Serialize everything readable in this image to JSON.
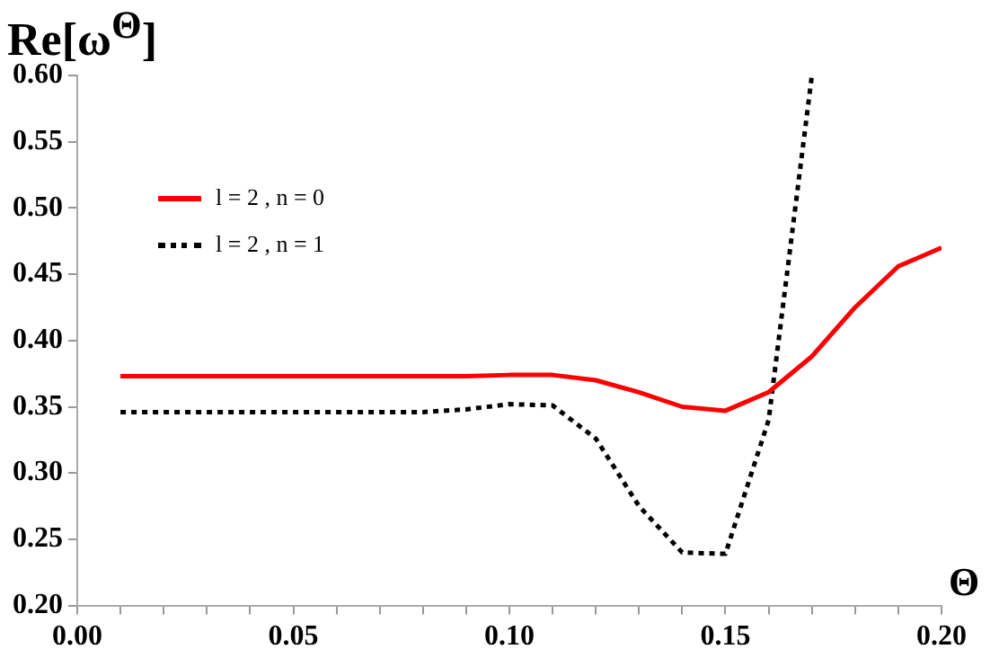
{
  "chart_data": {
    "type": "line",
    "ylabel": "Re[ω$^{Θ}$]",
    "xlabel": "Θ",
    "x": [
      0.01,
      0.02,
      0.03,
      0.04,
      0.05,
      0.06,
      0.07,
      0.08,
      0.09,
      0.1,
      0.11,
      0.12,
      0.13,
      0.14,
      0.15,
      0.16,
      0.17,
      0.18,
      0.19,
      0.2
    ],
    "series": [
      {
        "name": "l = 2 , n = 0",
        "color": "#ff0000",
        "line_style": "solid",
        "values": [
          0.373,
          0.373,
          0.373,
          0.373,
          0.373,
          0.373,
          0.373,
          0.373,
          0.373,
          0.374,
          0.374,
          0.37,
          0.361,
          0.35,
          0.347,
          0.361,
          0.388,
          0.425,
          0.456,
          0.47
        ]
      },
      {
        "name": "l = 2 , n = 1",
        "color": "#000000",
        "line_style": "dotted",
        "values": [
          0.346,
          0.346,
          0.346,
          0.346,
          0.346,
          0.346,
          0.346,
          0.346,
          0.348,
          0.352,
          0.351,
          0.326,
          0.275,
          0.24,
          0.239,
          0.34,
          0.6,
          null,
          null,
          null
        ]
      }
    ],
    "xlim": [
      0,
      0.2
    ],
    "ylim": [
      0.2,
      0.6
    ],
    "xticks": [
      {
        "value": 0,
        "label": "0.00"
      },
      {
        "value": 0.01,
        "label": null
      },
      {
        "value": 0.02,
        "label": null
      },
      {
        "value": 0.03,
        "label": null
      },
      {
        "value": 0.04,
        "label": null
      },
      {
        "value": 0.05,
        "label": "0.05"
      },
      {
        "value": 0.06,
        "label": null
      },
      {
        "value": 0.07,
        "label": null
      },
      {
        "value": 0.08,
        "label": null
      },
      {
        "value": 0.09,
        "label": null
      },
      {
        "value": 0.1,
        "label": "0.10"
      },
      {
        "value": 0.11,
        "label": null
      },
      {
        "value": 0.12,
        "label": null
      },
      {
        "value": 0.13,
        "label": null
      },
      {
        "value": 0.14,
        "label": null
      },
      {
        "value": 0.15,
        "label": "0.15"
      },
      {
        "value": 0.16,
        "label": null
      },
      {
        "value": 0.17,
        "label": null
      },
      {
        "value": 0.18,
        "label": null
      },
      {
        "value": 0.19,
        "label": null
      },
      {
        "value": 0.2,
        "label": "0.20"
      }
    ],
    "yticks": [
      {
        "value": 0.2,
        "label": "0.20"
      },
      {
        "value": 0.25,
        "label": "0.25"
      },
      {
        "value": 0.3,
        "label": "0.30"
      },
      {
        "value": 0.35,
        "label": "0.35"
      },
      {
        "value": 0.4,
        "label": "0.40"
      },
      {
        "value": 0.45,
        "label": "0.45"
      },
      {
        "value": 0.5,
        "label": "0.50"
      },
      {
        "value": 0.55,
        "label": "0.55"
      },
      {
        "value": 0.6,
        "label": "0.60"
      }
    ],
    "grid": false,
    "legend": "top left",
    "marker": "none"
  }
}
